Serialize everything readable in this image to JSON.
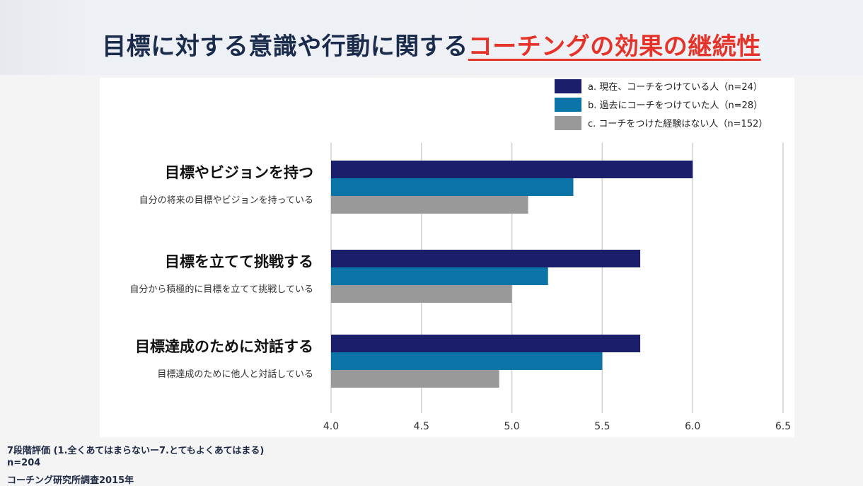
{
  "header": {
    "title_main": "目標に対する意識や行動に関する",
    "title_highlight": "コーチングの効果の継続性"
  },
  "colors": {
    "series_a": "#1b1f6b",
    "series_b": "#0a73a8",
    "series_c": "#999999",
    "title": "#1b2b4b",
    "highlight": "#e63329"
  },
  "footnotes": {
    "scale": "7段階評価 (1.全くあてはまらないー7.とてもよくあてはまる)",
    "n": "n=204",
    "source": "コーチング研究所調査2015年"
  },
  "chart_data": {
    "type": "bar",
    "orientation": "horizontal",
    "categories": [
      "目標やビジョンを持つ",
      "目標を立てて挑戦する",
      "目標達成のために対話する"
    ],
    "category_sublabels": [
      "自分の将来の目標やビジョンを持っている",
      "自分から積極的に目標を立てて挑戦している",
      "目標達成のために他人と対話している"
    ],
    "series": [
      {
        "name": "a. 現在、コーチをつけている人（n=24）",
        "values": [
          6.0,
          5.71,
          5.71
        ]
      },
      {
        "name": "b. 過去にコーチをつけていた人（n=28）",
        "values": [
          5.34,
          5.2,
          5.5
        ]
      },
      {
        "name": "c. コーチをつけた経験はない人（n=152）",
        "values": [
          5.09,
          5.0,
          4.93
        ]
      }
    ],
    "xlim": [
      4.0,
      6.5
    ],
    "xticks": [
      "4.0",
      "4.5",
      "5.0",
      "5.5",
      "6.0",
      "6.5"
    ],
    "grid": true,
    "legend_position": "top-right"
  }
}
